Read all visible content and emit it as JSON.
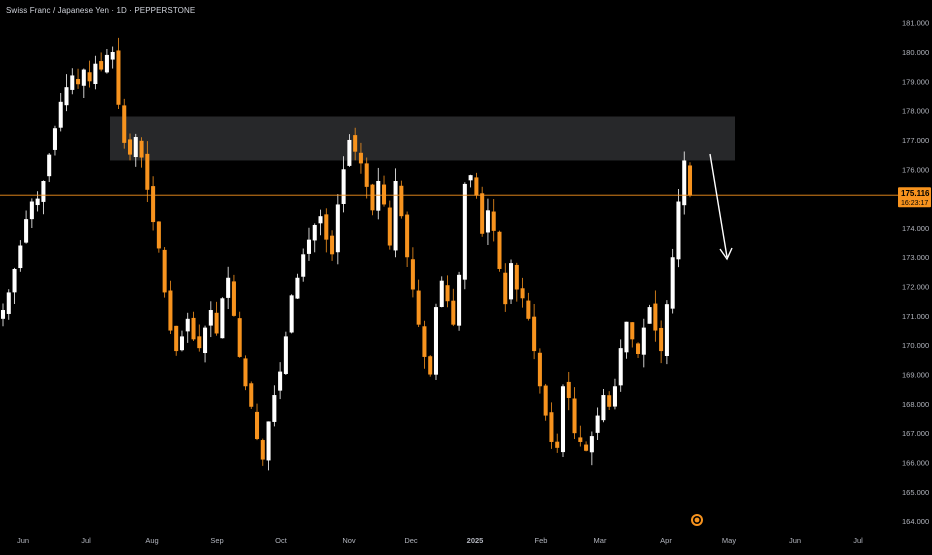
{
  "header": {
    "title": "Swiss Franc / Japanese Yen · 1D · PEPPERSTONE"
  },
  "price_label": {
    "price": "175.116",
    "countdown": "16:23:17"
  },
  "colors": {
    "background": "#000000",
    "up_candle": "#ffffff",
    "down_candle": "#f7931e",
    "price_line": "#f7931e",
    "zone": "#2a2b2e",
    "axis_text": "#b2b5be",
    "arrow": "#ffffff"
  },
  "icons": {
    "event_marker": "dividend-circle-icon",
    "projection_arrow": "down-arrow-icon"
  },
  "chart_data": {
    "type": "candlestick",
    "title": "Swiss Franc / Japanese Yen · 1D · PEPPERSTONE",
    "ylim": [
      163.8,
      181.5
    ],
    "y_ticks": [
      164,
      165,
      166,
      167,
      168,
      169,
      170,
      171,
      172,
      173,
      174,
      175,
      176,
      177,
      178,
      179,
      180,
      181
    ],
    "y_tick_labels": [
      "164.000",
      "165.000",
      "166.000",
      "167.000",
      "168.000",
      "169.000",
      "170.000",
      "171.000",
      "172.000",
      "173.000",
      "174.000",
      "175.000",
      "176.000",
      "177.000",
      "178.000",
      "179.000",
      "180.000",
      "181.000"
    ],
    "x_labels": [
      "Jun",
      "Jul",
      "Aug",
      "Sep",
      "Oct",
      "Nov",
      "Dec",
      "2025",
      "Feb",
      "Mar",
      "Apr",
      "May",
      "Jun",
      "Jul"
    ],
    "current_price": 175.116,
    "resistance_zone": [
      176.3,
      177.8
    ],
    "grid": false,
    "candles_ohlc_description": "approximate daily swing path",
    "price_path": [
      171.2,
      171.8,
      172.6,
      173.4,
      174.3,
      174.9,
      175.0,
      175.6,
      176.5,
      177.4,
      178.3,
      178.8,
      179.2,
      178.9,
      179.4,
      179.0,
      179.6,
      179.4,
      179.9,
      180.0,
      178.2,
      176.9,
      176.5,
      177.1,
      176.4,
      175.3,
      174.2,
      173.3,
      171.8,
      170.5,
      169.8,
      170.3,
      170.9,
      170.2,
      169.9,
      170.6,
      171.2,
      170.4,
      171.6,
      172.3,
      171.0,
      169.6,
      168.6,
      167.9,
      166.8,
      166.1,
      167.4,
      168.3,
      169.1,
      170.3,
      171.7,
      172.3,
      173.1,
      173.6,
      174.1,
      174.4,
      173.6,
      173.1,
      174.8,
      176.0,
      177.0,
      176.6,
      176.2,
      175.4,
      174.6,
      175.6,
      174.8,
      173.4,
      175.6,
      174.4,
      173.0,
      171.9,
      170.7,
      169.6,
      169.0,
      171.3,
      172.2,
      171.5,
      170.7,
      172.4,
      175.5,
      175.8,
      175.1,
      173.8,
      174.6,
      173.9,
      172.6,
      171.4,
      172.8,
      171.9,
      171.6,
      170.9,
      169.8,
      168.6,
      167.6,
      166.7,
      166.5,
      168.6,
      168.2,
      167.0,
      166.7,
      166.4,
      166.9,
      167.6,
      168.3,
      167.9,
      168.6,
      169.9,
      170.8,
      170.2,
      169.7,
      170.6,
      171.3,
      170.5,
      169.8,
      171.4,
      173.0,
      174.9,
      176.3,
      175.1
    ]
  }
}
